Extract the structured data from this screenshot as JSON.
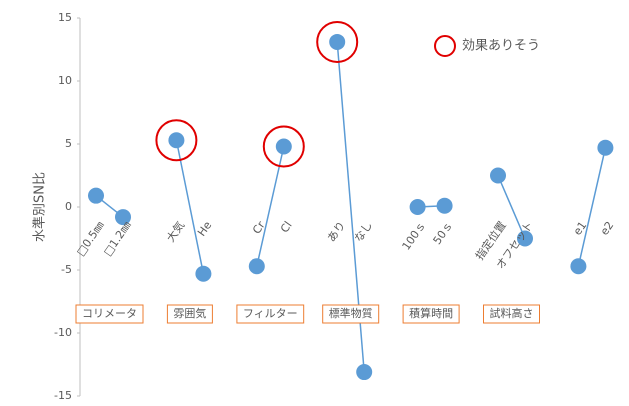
{
  "chart_data": {
    "type": "paired-line",
    "y_label": "水準別SN比",
    "categories": [
      "□0.5㎜",
      "□1.2㎜",
      "大気",
      "He",
      "Cr",
      "Cl",
      "あり",
      "なし",
      "100ｓ",
      "50ｓ",
      "指定位置",
      "オフセット",
      "e1",
      "e2"
    ],
    "values": [
      0.9,
      -0.8,
      5.3,
      -5.3,
      -4.7,
      4.8,
      13.1,
      -13.1,
      0.0,
      0.1,
      2.5,
      -2.5,
      -4.7,
      4.7
    ],
    "groups": [
      "コリメータ",
      "雰囲気",
      "フィルター",
      "標準物質",
      "積算時間",
      "試料高さ"
    ],
    "color": "#5b9bd5",
    "ylim": [
      -15,
      15
    ],
    "yticks": [
      -15,
      -10,
      -5,
      0,
      5,
      10,
      15
    ],
    "highlight": {
      "label": "効果ありそう",
      "color": "#e00000",
      "points": [
        2,
        5,
        6
      ]
    }
  }
}
